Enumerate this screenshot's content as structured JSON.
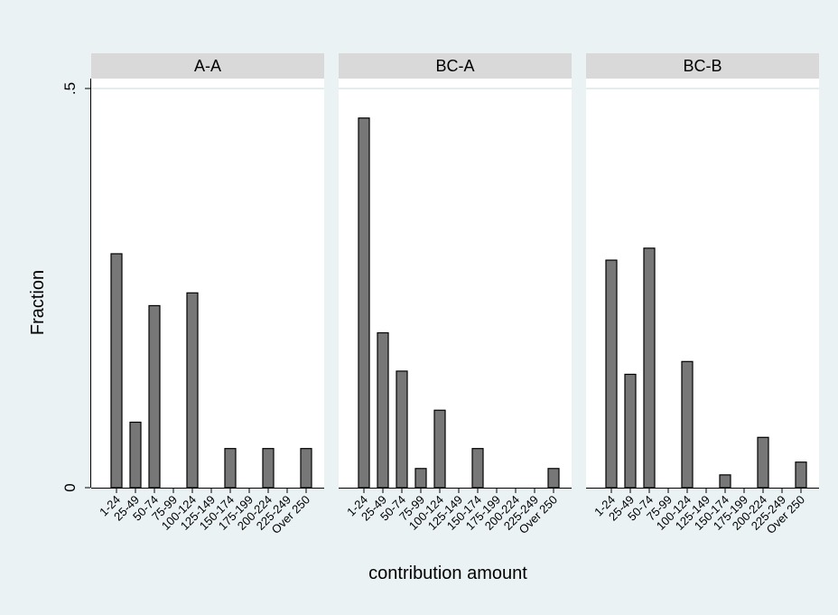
{
  "chart_data": {
    "type": "bar",
    "ylabel": "Fraction",
    "xlabel": "contribution amount",
    "ylim": [
      0,
      0.5
    ],
    "yticks": [
      {
        "value": 0,
        "label": "0"
      },
      {
        "value": 0.5,
        "label": ".5"
      }
    ],
    "grid": true,
    "colors": {
      "background": "#eaf2f3",
      "panel": "#ffffff",
      "strip": "#d9d9d9",
      "bar": "#777777",
      "bar_edge": "#000000",
      "grid": "#e5ecee"
    },
    "categories": [
      "1-24",
      "25-49",
      "50-74",
      "75-99",
      "100-124",
      "125-149",
      "150-174",
      "175-199",
      "200-224",
      "225-249",
      "Over 250"
    ],
    "panels": [
      {
        "title": "A-A",
        "values": [
          0.293,
          0.082,
          0.228,
          0,
          0.244,
          0,
          0.049,
          0,
          0.049,
          0,
          0.049
        ]
      },
      {
        "title": "BC-A",
        "values": [
          0.463,
          0.194,
          0.146,
          0.024,
          0.097,
          0,
          0.049,
          0,
          0,
          0,
          0.024
        ]
      },
      {
        "title": "BC-B",
        "values": [
          0.285,
          0.142,
          0.3,
          0,
          0.158,
          0,
          0.016,
          0,
          0.063,
          0,
          0.032
        ]
      }
    ]
  }
}
